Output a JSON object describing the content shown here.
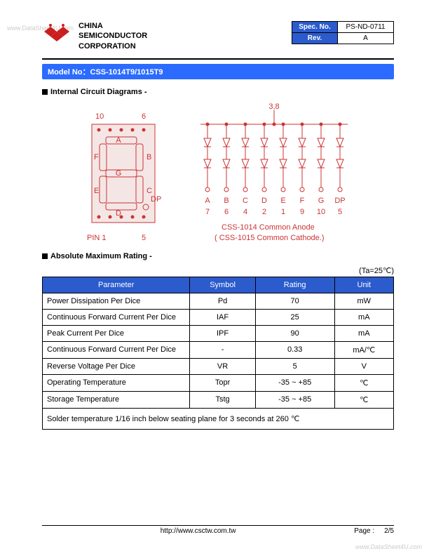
{
  "watermark_top": "www.DataSheet4U.com",
  "watermark_bottom": "www.DataSheet4U.com",
  "header": {
    "company_line1": "CHINA",
    "company_line2": "SEMICONDUCTOR",
    "company_line3": "CORPORATION",
    "logo_color": "#cc1e1e"
  },
  "spec_box": {
    "spec_label": "Spec. No.",
    "spec_value": "PS-ND-0711",
    "rev_label": "Rev.",
    "rev_value": "A",
    "label_bg": "#2b5bcc"
  },
  "model_bar": {
    "text": "Model No：CSS-1014T9/1015T9",
    "bg": "#2b6bff"
  },
  "section_circuit": "Internal Circuit Diagrams -",
  "section_rating": "Absolute Maximum Rating -",
  "seg_display": {
    "color": "#cc3333",
    "pin10": "10",
    "pin6": "6",
    "pin1_label": "PIN 1",
    "pin5": "5",
    "seg_a": "A",
    "seg_b": "B",
    "seg_c": "C",
    "seg_d": "D",
    "seg_e": "E",
    "seg_f": "F",
    "seg_g": "G",
    "seg_dp": "DP"
  },
  "led_circuit": {
    "color": "#cc3333",
    "top_pins": "3,8",
    "labels": [
      "A",
      "B",
      "C",
      "D",
      "E",
      "F",
      "G",
      "DP"
    ],
    "pins": [
      "7",
      "6",
      "4",
      "2",
      "1",
      "9",
      "10",
      "5"
    ],
    "note1": "CSS-1014 Common Anode",
    "note2": "( CSS-1015 Common Cathode.)"
  },
  "ta_note": "(Ta=25℃)",
  "rating_table": {
    "header_bg": "#2b5bcc",
    "headers": {
      "parameter": "Parameter",
      "symbol": "Symbol",
      "rating": "Rating",
      "unit": "Unit"
    },
    "rows": [
      {
        "parameter": "Power Dissipation Per Dice",
        "symbol": "Pd",
        "rating": "70",
        "unit": "mW"
      },
      {
        "parameter": "Continuous Forward Current Per Dice",
        "symbol": "IAF",
        "rating": "25",
        "unit": "mA"
      },
      {
        "parameter": "Peak Current Per Dice",
        "symbol": "IPF",
        "rating": "90",
        "unit": "mA"
      },
      {
        "parameter": "Continuous Forward Current Per Dice",
        "symbol": "-",
        "rating": "0.33",
        "unit": "mA/℃"
      },
      {
        "parameter": "Reverse Voltage Per Dice",
        "symbol": "VR",
        "rating": "5",
        "unit": "V"
      },
      {
        "parameter": "Operating Temperature",
        "symbol": "Topr",
        "rating": "-35 ~ +85",
        "unit": "℃"
      },
      {
        "parameter": "Storage Temperature",
        "symbol": "Tstg",
        "rating": "-35 ~ +85",
        "unit": "℃"
      }
    ],
    "note": "Solder temperature 1/16 inch below seating plane for 3 seconds at 260 ℃"
  },
  "footer": {
    "url": "http://www.csctw.com.tw",
    "page_label": "Page :",
    "page_value": "2/5"
  }
}
